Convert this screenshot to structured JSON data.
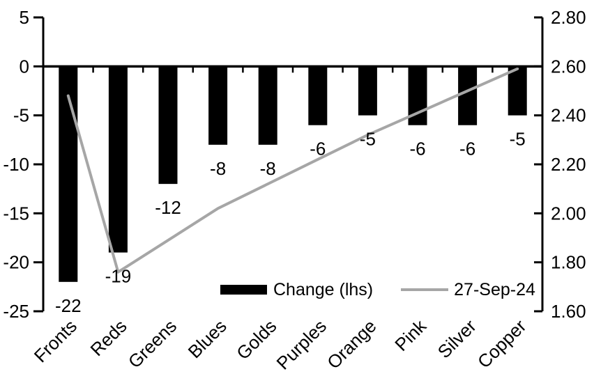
{
  "chart_data": {
    "type": "bar+line",
    "title": "",
    "categories": [
      "Fronts",
      "Reds",
      "Greens",
      "Blues",
      "Golds",
      "Purples",
      "Orange",
      "Pink",
      "Silver",
      "Copper"
    ],
    "series": [
      {
        "name": "Change (lhs)",
        "type": "bar",
        "axis": "left",
        "color": "#000000",
        "values": [
          -22,
          -19,
          -12,
          -8,
          -8,
          -6,
          -5,
          -6,
          -6,
          -5
        ],
        "data_labels": [
          "-22",
          "-19",
          "-12",
          "-8",
          "-8",
          "-6",
          "-5",
          "-6",
          "-6",
          "-5"
        ]
      },
      {
        "name": "27-Sep-24",
        "type": "line",
        "axis": "right",
        "color": "#a6a6a6",
        "values": [
          2.48,
          1.76,
          1.89,
          2.02,
          2.12,
          2.22,
          2.32,
          2.41,
          2.5,
          2.59
        ]
      }
    ],
    "left_axis": {
      "min": -25,
      "max": 5,
      "step": 5,
      "tick_labels": [
        "5",
        "0",
        "-5",
        "-10",
        "-15",
        "-20",
        "-25"
      ]
    },
    "right_axis": {
      "min": 1.6,
      "max": 2.8,
      "step": 0.2,
      "tick_labels": [
        "2.80",
        "2.60",
        "2.40",
        "2.20",
        "2.00",
        "1.80",
        "1.60"
      ]
    },
    "grid": false,
    "legend_position": "bottom-inside",
    "axis_color": "#000000",
    "text_color": "#000000",
    "background_color": "#ffffff"
  }
}
